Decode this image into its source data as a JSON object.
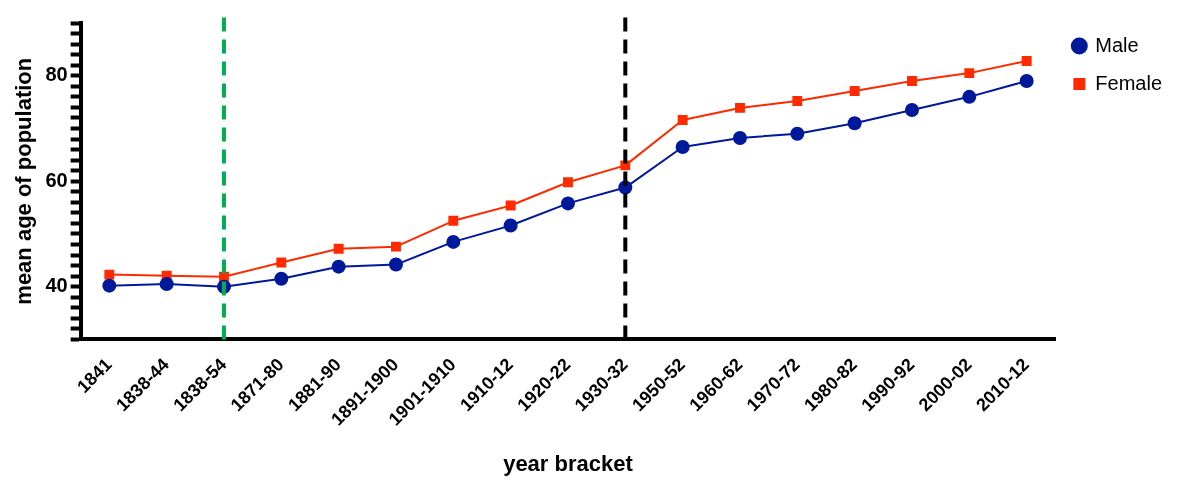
{
  "chart_data": {
    "type": "line",
    "xlabel": "year bracket",
    "ylabel": "mean age of population",
    "categories": [
      "1841",
      "1838-44",
      "1838-54",
      "1871-80",
      "1881-90",
      "1891-1900",
      "1901-1910",
      "1910-12",
      "1920-22",
      "1930-32",
      "1950-52",
      "1960-62",
      "1970-72",
      "1980-82",
      "1990-92",
      "2000-02",
      "2010-12"
    ],
    "series": [
      {
        "name": "Male",
        "color": "#00189a",
        "marker": "circle",
        "values": [
          40.2,
          40.5,
          40.0,
          41.5,
          43.8,
          44.2,
          48.5,
          51.6,
          55.8,
          58.8,
          66.5,
          68.2,
          69.0,
          71.0,
          73.5,
          76.0,
          79.0
        ]
      },
      {
        "name": "Female",
        "color": "#ff2a00",
        "marker": "square",
        "values": [
          42.3,
          42.1,
          41.9,
          44.6,
          47.2,
          47.6,
          52.5,
          55.4,
          59.8,
          63.0,
          71.6,
          73.9,
          75.2,
          77.1,
          79.0,
          80.5,
          82.8
        ]
      }
    ],
    "ylim": [
      30,
      90
    ],
    "yticks": [
      {
        "value": 30,
        "label": null
      },
      {
        "value": 32,
        "label": null
      },
      {
        "value": 34,
        "label": null
      },
      {
        "value": 36,
        "label": null
      },
      {
        "value": 38,
        "label": null
      },
      40,
      {
        "value": 42,
        "label": null
      },
      {
        "value": 44,
        "label": null
      },
      {
        "value": 46,
        "label": null
      },
      {
        "value": 48,
        "label": null
      },
      {
        "value": 50,
        "label": null
      },
      {
        "value": 52,
        "label": null
      },
      {
        "value": 54,
        "label": null
      },
      {
        "value": 56,
        "label": null
      },
      {
        "value": 58,
        "label": null
      },
      60,
      {
        "value": 62,
        "label": null
      },
      {
        "value": 64,
        "label": null
      },
      {
        "value": 66,
        "label": null
      },
      {
        "value": 68,
        "label": null
      },
      {
        "value": 70,
        "label": null
      },
      {
        "value": 72,
        "label": null
      },
      {
        "value": 74,
        "label": null
      },
      {
        "value": 76,
        "label": null
      },
      {
        "value": 78,
        "label": null
      },
      80,
      {
        "value": 82,
        "label": null
      },
      {
        "value": 84,
        "label": null
      },
      {
        "value": 86,
        "label": null
      },
      {
        "value": 88,
        "label": null
      },
      {
        "value": 90,
        "label": null
      }
    ],
    "ref_lines": [
      {
        "axis": "x",
        "value": "1838-54",
        "color": "#00b050",
        "line_style": "dashed"
      },
      {
        "axis": "x",
        "value": "1930-32",
        "color": "#000000",
        "line_style": "dashed"
      }
    ],
    "grid": false,
    "legend": "top right",
    "line_style": "solid"
  }
}
